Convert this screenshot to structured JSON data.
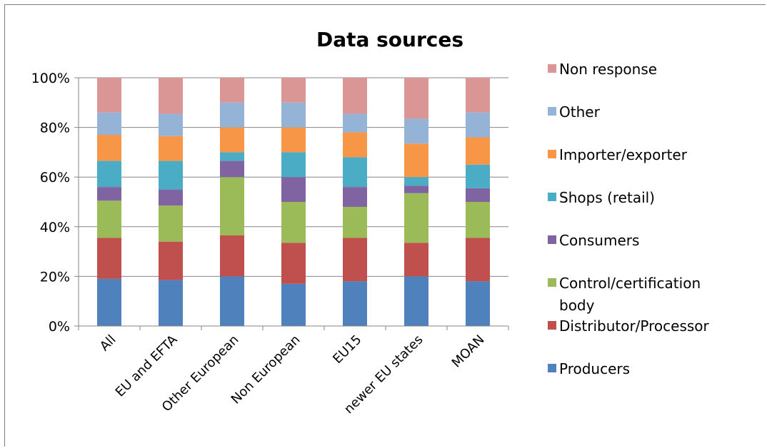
{
  "chart_data": {
    "type": "bar",
    "stacked": "percent",
    "title": "Data sources",
    "categories": [
      "All",
      "EU and EFTA",
      "Other European",
      "Non European",
      "EU15",
      "newer EU states",
      "MOAN"
    ],
    "ylim": [
      0,
      100
    ],
    "yticks": [
      "0%",
      "20%",
      "40%",
      "60%",
      "80%",
      "100%"
    ],
    "grid": true,
    "legend_position": "right",
    "series": [
      {
        "name": "Producers",
        "color": "#4f81bd",
        "values": [
          19,
          18.5,
          20,
          17,
          18,
          20,
          18
        ]
      },
      {
        "name": "Distributor/Processor",
        "color": "#c0504d",
        "values": [
          16.5,
          15.5,
          16.5,
          16.5,
          17.5,
          13.5,
          17.5
        ]
      },
      {
        "name": "Control/certification body",
        "color": "#9bbb59",
        "values": [
          15,
          14.5,
          23.5,
          16.5,
          12.5,
          20,
          14.5
        ]
      },
      {
        "name": "Consumers",
        "color": "#8064a2",
        "values": [
          5.5,
          6.5,
          6.5,
          10,
          8,
          3,
          5.5
        ]
      },
      {
        "name": "Shops (retail)",
        "color": "#4bacc6",
        "values": [
          10.5,
          11.5,
          3.5,
          10,
          12,
          3.5,
          9.5
        ]
      },
      {
        "name": "Importer/exporter",
        "color": "#f79646",
        "values": [
          10.5,
          10,
          10,
          10,
          10,
          13.5,
          11
        ]
      },
      {
        "name": "Other",
        "color": "#95b3d7",
        "values": [
          9,
          9,
          10,
          10,
          7.5,
          10,
          10
        ]
      },
      {
        "name": "Non response",
        "color": "#d99694",
        "values": [
          14,
          14.5,
          10,
          10,
          14.5,
          16.5,
          14
        ]
      }
    ]
  }
}
